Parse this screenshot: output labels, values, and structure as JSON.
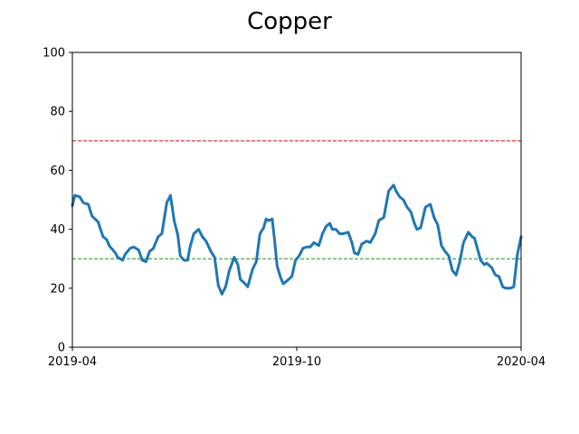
{
  "chart_data": {
    "type": "line",
    "title": "Copper",
    "xlabel": "",
    "ylabel": "",
    "ylim": [
      0,
      100
    ],
    "yticks": [
      "0",
      "20",
      "40",
      "60",
      "80",
      "100"
    ],
    "xlim": [
      "2019-04-01",
      "2020-04-01"
    ],
    "xticks": [
      {
        "date": "2019-04-01",
        "label": "2019-04"
      },
      {
        "date": "2019-10-01",
        "label": "2019-10"
      },
      {
        "date": "2020-04-01",
        "label": "2020-04"
      }
    ],
    "grid": false,
    "reference_lines": [
      {
        "y": 70,
        "color": "#d62728",
        "style": "dashed"
      },
      {
        "y": 30,
        "color": "#2ca02c",
        "style": "dashed"
      }
    ],
    "series": [
      {
        "color": "#1f77b4",
        "points": [
          [
            "2019-04-01",
            48
          ],
          [
            "2019-04-03",
            51.5
          ],
          [
            "2019-04-07",
            51
          ],
          [
            "2019-04-10",
            49
          ],
          [
            "2019-04-14",
            48.5
          ],
          [
            "2019-04-17",
            44.5
          ],
          [
            "2019-04-22",
            42.5
          ],
          [
            "2019-04-26",
            37.5
          ],
          [
            "2019-04-29",
            36.5
          ],
          [
            "2019-05-01",
            34.5
          ],
          [
            "2019-05-06",
            32
          ],
          [
            "2019-05-08",
            30.5
          ],
          [
            "2019-05-12",
            29.5
          ],
          [
            "2019-05-14",
            31.5
          ],
          [
            "2019-05-18",
            33.5
          ],
          [
            "2019-05-21",
            34
          ],
          [
            "2019-05-25",
            33
          ],
          [
            "2019-05-28",
            29.5
          ],
          [
            "2019-05-31",
            29
          ],
          [
            "2019-06-03",
            32.5
          ],
          [
            "2019-06-06",
            33.5
          ],
          [
            "2019-06-10",
            37.5
          ],
          [
            "2019-06-13",
            38.5
          ],
          [
            "2019-06-17",
            49
          ],
          [
            "2019-06-20",
            51.5
          ],
          [
            "2019-06-23",
            43
          ],
          [
            "2019-06-26",
            38
          ],
          [
            "2019-06-28",
            31
          ],
          [
            "2019-07-01",
            29.5
          ],
          [
            "2019-07-04",
            29.5
          ],
          [
            "2019-07-06",
            34
          ],
          [
            "2019-07-09",
            38.5
          ],
          [
            "2019-07-13",
            40
          ],
          [
            "2019-07-16",
            37.5
          ],
          [
            "2019-07-19",
            36
          ],
          [
            "2019-07-23",
            32.5
          ],
          [
            "2019-07-26",
            30.5
          ],
          [
            "2019-07-29",
            21
          ],
          [
            "2019-08-01",
            18
          ],
          [
            "2019-08-04",
            20.5
          ],
          [
            "2019-08-07",
            26
          ],
          [
            "2019-08-11",
            30.5
          ],
          [
            "2019-08-14",
            28
          ],
          [
            "2019-08-16",
            23
          ],
          [
            "2019-08-20",
            21.5
          ],
          [
            "2019-08-22",
            20.5
          ],
          [
            "2019-08-26",
            26.5
          ],
          [
            "2019-08-29",
            29
          ],
          [
            "2019-09-01",
            38.5
          ],
          [
            "2019-09-04",
            40.5
          ],
          [
            "2019-09-06",
            43.5
          ],
          [
            "2019-09-08",
            43
          ],
          [
            "2019-09-11",
            43.5
          ],
          [
            "2019-09-13",
            36
          ],
          [
            "2019-09-15",
            27.5
          ],
          [
            "2019-09-18",
            23.5
          ],
          [
            "2019-09-20",
            21.5
          ],
          [
            "2019-09-23",
            22.5
          ],
          [
            "2019-09-27",
            24
          ],
          [
            "2019-09-30",
            29.5
          ],
          [
            "2019-10-03",
            31
          ],
          [
            "2019-10-06",
            33.5
          ],
          [
            "2019-10-09",
            34
          ],
          [
            "2019-10-12",
            34
          ],
          [
            "2019-10-15",
            35.5
          ],
          [
            "2019-10-19",
            34.5
          ],
          [
            "2019-10-22",
            38.5
          ],
          [
            "2019-10-25",
            41
          ],
          [
            "2019-10-28",
            42
          ],
          [
            "2019-10-30",
            40
          ],
          [
            "2019-11-02",
            40
          ],
          [
            "2019-11-05",
            38.5
          ],
          [
            "2019-11-08",
            38.5
          ],
          [
            "2019-11-12",
            39
          ],
          [
            "2019-11-15",
            35.5
          ],
          [
            "2019-11-17",
            32
          ],
          [
            "2019-11-20",
            31.5
          ],
          [
            "2019-11-23",
            35
          ],
          [
            "2019-11-27",
            36
          ],
          [
            "2019-11-30",
            35.5
          ],
          [
            "2019-12-04",
            38.5
          ],
          [
            "2019-12-07",
            43
          ],
          [
            "2019-12-11",
            44
          ],
          [
            "2019-12-15",
            53
          ],
          [
            "2019-12-19",
            55
          ],
          [
            "2019-12-21",
            53
          ],
          [
            "2019-12-24",
            51
          ],
          [
            "2019-12-27",
            50
          ],
          [
            "2019-12-30",
            47.5
          ],
          [
            "2020-01-02",
            46
          ],
          [
            "2020-01-05",
            42
          ],
          [
            "2020-01-07",
            40
          ],
          [
            "2020-01-10",
            40.5
          ],
          [
            "2020-01-14",
            47.5
          ],
          [
            "2020-01-18",
            48.5
          ],
          [
            "2020-01-21",
            44
          ],
          [
            "2020-01-24",
            41.5
          ],
          [
            "2020-01-27",
            34.5
          ],
          [
            "2020-01-30",
            32.5
          ],
          [
            "2020-02-02",
            31
          ],
          [
            "2020-02-05",
            26
          ],
          [
            "2020-02-08",
            24.5
          ],
          [
            "2020-02-11",
            29
          ],
          [
            "2020-02-14",
            35.5
          ],
          [
            "2020-02-18",
            39
          ],
          [
            "2020-02-21",
            37.5
          ],
          [
            "2020-02-23",
            37
          ],
          [
            "2020-02-26",
            32.5
          ],
          [
            "2020-02-28",
            29.5
          ],
          [
            "2020-03-02",
            28
          ],
          [
            "2020-03-04",
            28.5
          ],
          [
            "2020-03-08",
            27
          ],
          [
            "2020-03-11",
            24.5
          ],
          [
            "2020-03-14",
            24
          ],
          [
            "2020-03-17",
            20.5
          ],
          [
            "2020-03-20",
            20
          ],
          [
            "2020-03-23",
            20
          ],
          [
            "2020-03-26",
            20.5
          ],
          [
            "2020-03-29",
            31.5
          ],
          [
            "2020-04-01",
            37.5
          ]
        ]
      }
    ]
  }
}
